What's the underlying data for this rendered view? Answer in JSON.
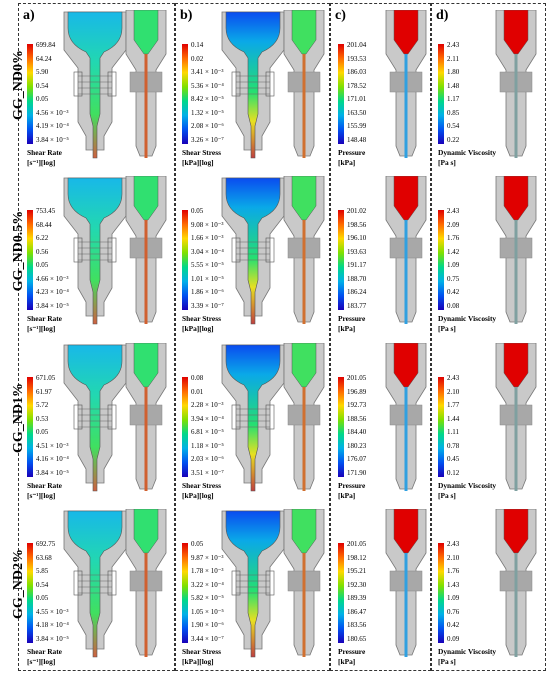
{
  "panels": [
    {
      "id": "a",
      "label": "a)"
    },
    {
      "id": "b",
      "label": "b)"
    },
    {
      "id": "c",
      "label": "c)"
    },
    {
      "id": "d",
      "label": "d)"
    }
  ],
  "rows": [
    {
      "label": "GG_ND0%",
      "shear_rate": {
        "title": "Shear Rate",
        "unit": "[s⁻¹][log]",
        "ticks": [
          "699.84",
          "64.24",
          "5.90",
          "0.54",
          "0.05",
          "4.56 × 10⁻³",
          "4.19 × 10⁻⁴",
          "3.84 × 10⁻⁵"
        ]
      },
      "shear_stress": {
        "title": "Shear Stress",
        "unit": "[kPa][log]",
        "ticks": [
          "0.14",
          "0.02",
          "3.41 × 10⁻³",
          "5.36 × 10⁻⁴",
          "8.42 × 10⁻⁵",
          "1.32 × 10⁻⁵",
          "2.08 × 10⁻⁶",
          "3.26 × 10⁻⁷"
        ]
      },
      "pressure": {
        "title": "Pressure",
        "unit": "[kPa]",
        "ticks": [
          "201.04",
          "193.53",
          "186.03",
          "178.52",
          "171.01",
          "163.50",
          "155.99",
          "148.48"
        ]
      },
      "viscosity": {
        "title": "Dynamic Viscosity",
        "unit": "[Pa s]",
        "ticks": [
          "2.43",
          "2.11",
          "1.80",
          "1.48",
          "1.17",
          "0.85",
          "0.54",
          "0.22"
        ]
      }
    },
    {
      "label": "GG_ND0.5%",
      "shear_rate": {
        "title": "Shear Rate",
        "unit": "[s⁻¹][log]",
        "ticks": [
          "753.45",
          "68.44",
          "6.22",
          "0.56",
          "0.05",
          "4.66 × 10⁻³",
          "4.23 × 10⁻⁴",
          "3.84 × 10⁻⁵"
        ]
      },
      "shear_stress": {
        "title": "Shear Stress",
        "unit": "[kPa][log]",
        "ticks": [
          "0.05",
          "9.08 × 10⁻³",
          "1.66 × 10⁻³",
          "3.04 × 10⁻⁴",
          "5.55 × 10⁻⁵",
          "1.01 × 10⁻⁵",
          "1.86 × 10⁻⁶",
          "3.39 × 10⁻⁷"
        ]
      },
      "pressure": {
        "title": "Pressure",
        "unit": "[kPa]",
        "ticks": [
          "201.02",
          "198.56",
          "196.10",
          "193.63",
          "191.17",
          "188.70",
          "186.24",
          "183.77"
        ]
      },
      "viscosity": {
        "title": "Dynamic Viscosity",
        "unit": "[Pa s]",
        "ticks": [
          "2.43",
          "2.09",
          "1.76",
          "1.42",
          "1.09",
          "0.75",
          "0.42",
          "0.08"
        ]
      }
    },
    {
      "label": "GG_ND1%",
      "shear_rate": {
        "title": "Shear Rate",
        "unit": "[s⁻¹][log]",
        "ticks": [
          "671.05",
          "61.97",
          "5.72",
          "0.53",
          "0.05",
          "4.51 × 10⁻³",
          "4.16 × 10⁻⁴",
          "3.84 × 10⁻⁵"
        ]
      },
      "shear_stress": {
        "title": "Shear Stress",
        "unit": "[kPa][log]",
        "ticks": [
          "0.08",
          "0.01",
          "2.28 × 10⁻³",
          "3.94 × 10⁻⁴",
          "6.81 × 10⁻⁵",
          "1.18 × 10⁻⁵",
          "2.03 × 10⁻⁶",
          "3.51 × 10⁻⁷"
        ]
      },
      "pressure": {
        "title": "Pressure",
        "unit": "[kPa]",
        "ticks": [
          "201.05",
          "196.89",
          "192.73",
          "188.56",
          "184.40",
          "180.23",
          "176.07",
          "171.90"
        ]
      },
      "viscosity": {
        "title": "Dynamic Viscosity",
        "unit": "[Pa s]",
        "ticks": [
          "2.43",
          "2.10",
          "1.77",
          "1.44",
          "1.11",
          "0.78",
          "0.45",
          "0.12"
        ]
      }
    },
    {
      "label": "GG_ND2%",
      "shear_rate": {
        "title": "Shear Rate",
        "unit": "[s⁻¹][log]",
        "ticks": [
          "692.75",
          "63.68",
          "5.85",
          "0.54",
          "0.05",
          "4.55 × 10⁻³",
          "4.18 × 10⁻⁴",
          "3.84 × 10⁻⁵"
        ]
      },
      "shear_stress": {
        "title": "Shear Stress",
        "unit": "[kPa][log]",
        "ticks": [
          "0.05",
          "9.87 × 10⁻³",
          "1.78 × 10⁻³",
          "3.22 × 10⁻⁴",
          "5.82 × 10⁻⁵",
          "1.05 × 10⁻⁵",
          "1.90 × 10⁻⁶",
          "3.44 × 10⁻⁷"
        ]
      },
      "pressure": {
        "title": "Pressure",
        "unit": "[kPa]",
        "ticks": [
          "201.05",
          "198.12",
          "195.21",
          "192.30",
          "189.39",
          "186.47",
          "183.56",
          "180.65"
        ]
      },
      "viscosity": {
        "title": "Dynamic Viscosity",
        "unit": "[Pa s]",
        "ticks": [
          "2.43",
          "2.10",
          "1.76",
          "1.43",
          "1.09",
          "0.76",
          "0.42",
          "0.09"
        ]
      }
    }
  ],
  "colors": {
    "max": "#e00000",
    "high": "#ffd800",
    "mid": "#00d88a",
    "low": "#0050f0",
    "body": "#c9c9c9",
    "bodyDark": "#a8a8a8"
  }
}
